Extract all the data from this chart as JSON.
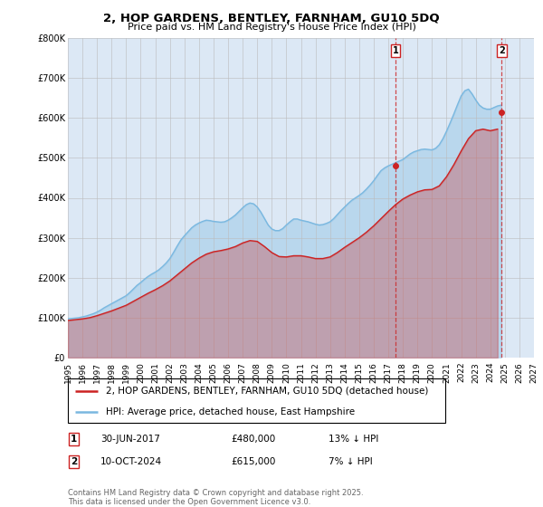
{
  "title": "2, HOP GARDENS, BENTLEY, FARNHAM, GU10 5DQ",
  "subtitle": "Price paid vs. HM Land Registry's House Price Index (HPI)",
  "hpi_color": "#7ab8e0",
  "price_color": "#cc2222",
  "dashed_color": "#cc2222",
  "bg_color": "#dce8f5",
  "ylim": [
    0,
    800000
  ],
  "yticks": [
    0,
    100000,
    200000,
    300000,
    400000,
    500000,
    600000,
    700000,
    800000
  ],
  "ytick_labels": [
    "£0",
    "£100K",
    "£200K",
    "£300K",
    "£400K",
    "£500K",
    "£600K",
    "£700K",
    "£800K"
  ],
  "xlabel_years": [
    1995,
    1996,
    1997,
    1998,
    1999,
    2000,
    2001,
    2002,
    2003,
    2004,
    2005,
    2006,
    2007,
    2008,
    2009,
    2010,
    2011,
    2012,
    2013,
    2014,
    2015,
    2016,
    2017,
    2018,
    2019,
    2020,
    2021,
    2022,
    2023,
    2024,
    2025,
    2026,
    2027
  ],
  "sale1_date": 2017.5,
  "sale1_price": 480000,
  "sale1_label": "1",
  "sale2_date": 2024.78,
  "sale2_price": 615000,
  "sale2_label": "2",
  "legend_line1": "2, HOP GARDENS, BENTLEY, FARNHAM, GU10 5DQ (detached house)",
  "legend_line2": "HPI: Average price, detached house, East Hampshire",
  "table_row1": [
    "1",
    "30-JUN-2017",
    "£480,000",
    "13% ↓ HPI"
  ],
  "table_row2": [
    "2",
    "10-OCT-2024",
    "£615,000",
    "7% ↓ HPI"
  ],
  "footnote": "Contains HM Land Registry data © Crown copyright and database right 2025.\nThis data is licensed under the Open Government Licence v3.0.",
  "grid_color": "#bbbbbb",
  "hpi_data_x": [
    1995.0,
    1995.25,
    1995.5,
    1995.75,
    1996.0,
    1996.25,
    1996.5,
    1996.75,
    1997.0,
    1997.25,
    1997.5,
    1997.75,
    1998.0,
    1998.25,
    1998.5,
    1998.75,
    1999.0,
    1999.25,
    1999.5,
    1999.75,
    2000.0,
    2000.25,
    2000.5,
    2000.75,
    2001.0,
    2001.25,
    2001.5,
    2001.75,
    2002.0,
    2002.25,
    2002.5,
    2002.75,
    2003.0,
    2003.25,
    2003.5,
    2003.75,
    2004.0,
    2004.25,
    2004.5,
    2004.75,
    2005.0,
    2005.25,
    2005.5,
    2005.75,
    2006.0,
    2006.25,
    2006.5,
    2006.75,
    2007.0,
    2007.25,
    2007.5,
    2007.75,
    2008.0,
    2008.25,
    2008.5,
    2008.75,
    2009.0,
    2009.25,
    2009.5,
    2009.75,
    2010.0,
    2010.25,
    2010.5,
    2010.75,
    2011.0,
    2011.25,
    2011.5,
    2011.75,
    2012.0,
    2012.25,
    2012.5,
    2012.75,
    2013.0,
    2013.25,
    2013.5,
    2013.75,
    2014.0,
    2014.25,
    2014.5,
    2014.75,
    2015.0,
    2015.25,
    2015.5,
    2015.75,
    2016.0,
    2016.25,
    2016.5,
    2016.75,
    2017.0,
    2017.25,
    2017.5,
    2017.75,
    2018.0,
    2018.25,
    2018.5,
    2018.75,
    2019.0,
    2019.25,
    2019.5,
    2019.75,
    2020.0,
    2020.25,
    2020.5,
    2020.75,
    2021.0,
    2021.25,
    2021.5,
    2021.75,
    2022.0,
    2022.25,
    2022.5,
    2022.75,
    2023.0,
    2023.25,
    2023.5,
    2023.75,
    2024.0,
    2024.25,
    2024.5,
    2024.75
  ],
  "hpi_data_y": [
    97000,
    98000,
    99000,
    100000,
    102000,
    104000,
    107000,
    110000,
    114000,
    119000,
    125000,
    130000,
    135000,
    140000,
    145000,
    150000,
    155000,
    163000,
    172000,
    181000,
    188000,
    196000,
    203000,
    209000,
    214000,
    220000,
    228000,
    237000,
    248000,
    263000,
    279000,
    294000,
    305000,
    315000,
    325000,
    332000,
    337000,
    341000,
    344000,
    343000,
    341000,
    340000,
    339000,
    340000,
    344000,
    350000,
    357000,
    366000,
    375000,
    383000,
    387000,
    385000,
    377000,
    364000,
    348000,
    332000,
    322000,
    318000,
    318000,
    323000,
    332000,
    340000,
    347000,
    347000,
    344000,
    342000,
    340000,
    337000,
    334000,
    332000,
    333000,
    336000,
    340000,
    348000,
    358000,
    368000,
    377000,
    386000,
    394000,
    400000,
    406000,
    413000,
    422000,
    432000,
    443000,
    456000,
    468000,
    475000,
    480000,
    484000,
    488000,
    492000,
    496000,
    503000,
    510000,
    515000,
    518000,
    521000,
    522000,
    521000,
    520000,
    524000,
    533000,
    548000,
    567000,
    588000,
    610000,
    633000,
    655000,
    668000,
    672000,
    660000,
    645000,
    632000,
    625000,
    622000,
    622000,
    626000,
    630000,
    632000
  ],
  "price_data_x": [
    1995.0,
    1995.5,
    1996.0,
    1996.5,
    1997.0,
    1997.5,
    1998.0,
    1998.5,
    1999.0,
    1999.5,
    2000.0,
    2000.5,
    2001.0,
    2001.5,
    2002.0,
    2002.5,
    2003.0,
    2003.5,
    2004.0,
    2004.5,
    2005.0,
    2005.5,
    2006.0,
    2006.5,
    2007.0,
    2007.5,
    2008.0,
    2008.5,
    2009.0,
    2009.5,
    2010.0,
    2010.5,
    2011.0,
    2011.5,
    2012.0,
    2012.5,
    2013.0,
    2013.5,
    2014.0,
    2014.5,
    2015.0,
    2015.5,
    2016.0,
    2016.5,
    2017.0,
    2017.5,
    2018.0,
    2018.5,
    2019.0,
    2019.5,
    2020.0,
    2020.5,
    2021.0,
    2021.5,
    2022.0,
    2022.5,
    2023.0,
    2023.5,
    2024.0,
    2024.5
  ],
  "price_data_y": [
    93000,
    95000,
    97000,
    100000,
    105000,
    111000,
    117000,
    124000,
    131000,
    141000,
    151000,
    161000,
    170000,
    180000,
    192000,
    207000,
    222000,
    237000,
    249000,
    259000,
    265000,
    268000,
    272000,
    278000,
    287000,
    293000,
    291000,
    278000,
    263000,
    253000,
    252000,
    255000,
    255000,
    252000,
    248000,
    248000,
    252000,
    263000,
    276000,
    288000,
    300000,
    314000,
    330000,
    348000,
    366000,
    383000,
    397000,
    407000,
    415000,
    420000,
    421000,
    430000,
    453000,
    483000,
    517000,
    548000,
    568000,
    572000,
    568000,
    572000
  ]
}
